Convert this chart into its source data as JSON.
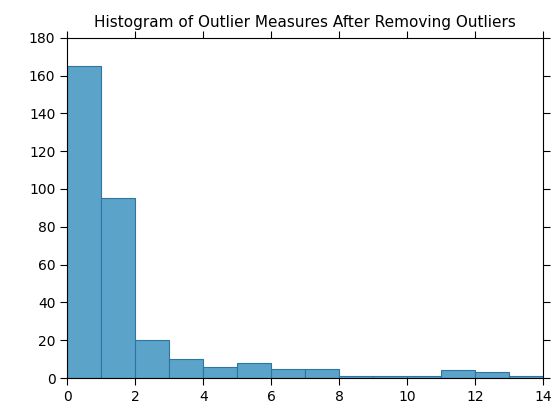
{
  "title": "Histogram of Outlier Measures After Removing Outliers",
  "bar_heights": [
    165,
    95,
    20,
    10,
    6,
    8,
    5,
    5,
    1,
    1,
    1,
    4,
    3,
    1
  ],
  "bin_edges": [
    0,
    1,
    2,
    3,
    4,
    5,
    6,
    7,
    8,
    9,
    10,
    11,
    12,
    13,
    14
  ],
  "bar_color": "#5BA3C9",
  "edge_color": "#2E75A3",
  "xlim": [
    0,
    14
  ],
  "ylim": [
    0,
    180
  ],
  "yticks": [
    0,
    20,
    40,
    60,
    80,
    100,
    120,
    140,
    160,
    180
  ],
  "xticks": [
    0,
    2,
    4,
    6,
    8,
    10,
    12,
    14
  ],
  "title_fontsize": 11,
  "tick_fontsize": 10,
  "background_color": "#ffffff",
  "spine_color": "#000000"
}
